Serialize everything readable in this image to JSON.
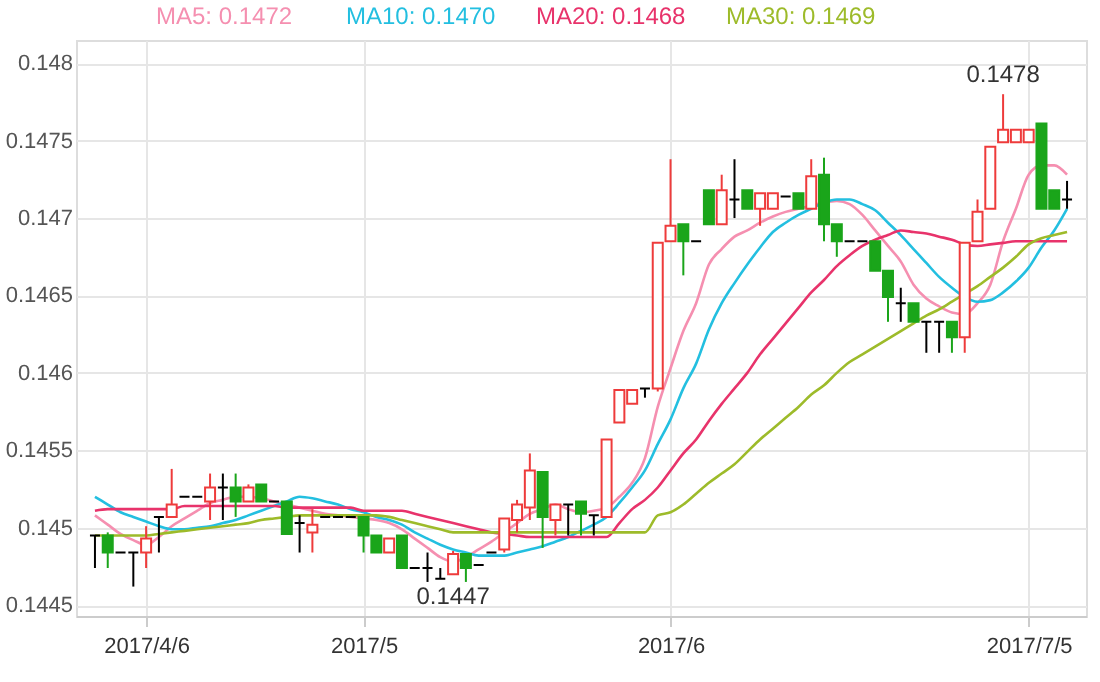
{
  "chart_data": {
    "type": "candlestick",
    "categories": [
      null,
      null,
      null,
      null,
      "2017/4/6",
      null,
      null,
      null,
      null,
      null,
      null,
      null,
      null,
      null,
      null,
      null,
      null,
      null,
      null,
      null,
      null,
      "2017/5",
      null,
      null,
      null,
      null,
      null,
      null,
      null,
      null,
      null,
      null,
      null,
      null,
      null,
      null,
      null,
      null,
      null,
      null,
      null,
      null,
      null,
      null,
      null,
      "2017/6",
      null,
      null,
      null,
      null,
      null,
      null,
      null,
      null,
      null,
      null,
      null,
      null,
      null,
      null,
      null,
      null,
      null,
      null,
      null,
      null,
      null,
      null,
      null,
      null,
      null,
      null,
      null,
      "2017/7/5",
      null,
      null,
      null
    ],
    "ohlc": [
      [
        0.14495,
        0.14495,
        0.14474,
        0.14495
      ],
      [
        0.14495,
        0.14497,
        0.14474,
        0.14484
      ],
      [
        0.14484,
        0.14484,
        0.14484,
        0.14484
      ],
      [
        0.14484,
        0.14484,
        0.14462,
        0.14484
      ],
      [
        0.14484,
        0.14501,
        0.14474,
        0.14493
      ],
      [
        0.14507,
        0.14507,
        0.14484,
        0.14507
      ],
      [
        0.14507,
        0.14538,
        0.14507,
        0.14515
      ],
      [
        0.1452,
        0.1452,
        0.1452,
        0.1452
      ],
      [
        0.1452,
        0.1452,
        0.1452,
        0.1452
      ],
      [
        0.14517,
        0.14535,
        0.14505,
        0.14526
      ],
      [
        0.14526,
        0.14535,
        0.14505,
        0.14526
      ],
      [
        0.14526,
        0.14535,
        0.14507,
        0.14517
      ],
      [
        0.14517,
        0.14528,
        0.14517,
        0.14526
      ],
      [
        0.14528,
        0.14528,
        0.14517,
        0.14517
      ],
      [
        0.14517,
        0.14517,
        0.14517,
        0.14517
      ],
      [
        0.14517,
        0.14517,
        0.14496,
        0.14496
      ],
      [
        0.14503,
        0.14508,
        0.14484,
        0.14503
      ],
      [
        0.14497,
        0.14512,
        0.14484,
        0.14502
      ],
      [
        0.14507,
        0.14507,
        0.14507,
        0.14507
      ],
      [
        0.14507,
        0.14507,
        0.14507,
        0.14507
      ],
      [
        0.14507,
        0.14507,
        0.14507,
        0.14507
      ],
      [
        0.14507,
        0.14507,
        0.14484,
        0.14495
      ],
      [
        0.14495,
        0.14495,
        0.14484,
        0.14484
      ],
      [
        0.14484,
        0.14493,
        0.14484,
        0.14493
      ],
      [
        0.14495,
        0.14495,
        0.14474,
        0.14474
      ],
      [
        0.14474,
        0.14474,
        0.14474,
        0.14474
      ],
      [
        0.14474,
        0.14484,
        0.14465,
        0.14474
      ],
      [
        0.14467,
        0.14474,
        0.14467,
        0.14467
      ],
      [
        0.1447,
        0.14485,
        0.1447,
        0.14483
      ],
      [
        0.14483,
        0.14483,
        0.14465,
        0.14474
      ],
      [
        0.14476,
        0.14476,
        0.14476,
        0.14476
      ],
      [
        0.14484,
        0.14484,
        0.14484,
        0.14484
      ],
      [
        0.14486,
        0.14506,
        0.14484,
        0.14506
      ],
      [
        0.14505,
        0.14518,
        0.14497,
        0.14515
      ],
      [
        0.14513,
        0.14548,
        0.14505,
        0.14537
      ],
      [
        0.14536,
        0.14536,
        0.14487,
        0.14507
      ],
      [
        0.14505,
        0.14515,
        0.14495,
        0.14515
      ],
      [
        0.14515,
        0.14515,
        0.14495,
        0.14515
      ],
      [
        0.14517,
        0.14517,
        0.14495,
        0.14509
      ],
      [
        0.14508,
        0.14508,
        0.14495,
        0.14508
      ],
      [
        0.14507,
        0.14557,
        0.14507,
        0.14557
      ],
      [
        0.14568,
        0.14589,
        0.14568,
        0.14589
      ],
      [
        0.1458,
        0.14589,
        0.1458,
        0.14589
      ],
      [
        0.1459,
        0.1459,
        0.14584,
        0.1459
      ],
      [
        0.1459,
        0.14684,
        0.14588,
        0.14684
      ],
      [
        0.14685,
        0.14738,
        0.14685,
        0.14695
      ],
      [
        0.14696,
        0.14696,
        0.14663,
        0.14685
      ],
      [
        0.14685,
        0.14685,
        0.14685,
        0.14685
      ],
      [
        0.14718,
        0.14718,
        0.14696,
        0.14696
      ],
      [
        0.14696,
        0.14728,
        0.14696,
        0.14718
      ],
      [
        0.14712,
        0.14738,
        0.147,
        0.14712
      ],
      [
        0.14718,
        0.14718,
        0.14706,
        0.14706
      ],
      [
        0.14706,
        0.14716,
        0.14695,
        0.14716
      ],
      [
        0.14706,
        0.14716,
        0.14706,
        0.14716
      ],
      [
        0.14714,
        0.14714,
        0.14714,
        0.14714
      ],
      [
        0.14716,
        0.14716,
        0.14706,
        0.14706
      ],
      [
        0.14706,
        0.14738,
        0.14706,
        0.14727
      ],
      [
        0.14728,
        0.14739,
        0.14685,
        0.14696
      ],
      [
        0.14696,
        0.14696,
        0.14675,
        0.14685
      ],
      [
        0.14685,
        0.14685,
        0.14685,
        0.14685
      ],
      [
        0.14685,
        0.14685,
        0.14685,
        0.14685
      ],
      [
        0.14685,
        0.14685,
        0.14666,
        0.14666
      ],
      [
        0.14666,
        0.14666,
        0.14633,
        0.14649
      ],
      [
        0.14645,
        0.14655,
        0.14633,
        0.14645
      ],
      [
        0.14645,
        0.14645,
        0.14633,
        0.14633
      ],
      [
        0.14633,
        0.14633,
        0.14613,
        0.14633
      ],
      [
        0.14633,
        0.14633,
        0.14613,
        0.14633
      ],
      [
        0.14633,
        0.14633,
        0.14613,
        0.14623
      ],
      [
        0.14623,
        0.14684,
        0.14613,
        0.14684
      ],
      [
        0.14685,
        0.14712,
        0.14685,
        0.14704
      ],
      [
        0.14706,
        0.14746,
        0.14706,
        0.14746
      ],
      [
        0.14749,
        0.1478,
        0.14749,
        0.14757
      ],
      [
        0.14749,
        0.14757,
        0.14749,
        0.14757
      ],
      [
        0.14749,
        0.14757,
        0.14749,
        0.14757
      ],
      [
        0.14761,
        0.14761,
        0.14706,
        0.14706
      ],
      [
        0.14718,
        0.14718,
        0.14706,
        0.14706
      ],
      [
        0.14712,
        0.14724,
        0.14706,
        0.14712
      ]
    ],
    "colors": [
      "#000000",
      "#1aa51a",
      "#000000",
      "#000000",
      "#ee3b3b",
      "#000000",
      "#ee3b3b",
      "#000000",
      "#000000",
      "#ee3b3b",
      "#000000",
      "#1aa51a",
      "#ee3b3b",
      "#1aa51a",
      "#000000",
      "#1aa51a",
      "#000000",
      "#ee3b3b",
      "#000000",
      "#000000",
      "#000000",
      "#1aa51a",
      "#1aa51a",
      "#ee3b3b",
      "#1aa51a",
      "#000000",
      "#000000",
      "#000000",
      "#ee3b3b",
      "#1aa51a",
      "#000000",
      "#000000",
      "#ee3b3b",
      "#ee3b3b",
      "#ee3b3b",
      "#1aa51a",
      "#ee3b3b",
      "#000000",
      "#1aa51a",
      "#000000",
      "#ee3b3b",
      "#ee3b3b",
      "#ee3b3b",
      "#000000",
      "#ee3b3b",
      "#ee3b3b",
      "#1aa51a",
      "#000000",
      "#1aa51a",
      "#ee3b3b",
      "#000000",
      "#1aa51a",
      "#ee3b3b",
      "#ee3b3b",
      "#000000",
      "#1aa51a",
      "#ee3b3b",
      "#1aa51a",
      "#1aa51a",
      "#000000",
      "#000000",
      "#1aa51a",
      "#1aa51a",
      "#000000",
      "#1aa51a",
      "#000000",
      "#000000",
      "#1aa51a",
      "#ee3b3b",
      "#ee3b3b",
      "#ee3b3b",
      "#ee3b3b",
      "#ee3b3b",
      "#ee3b3b",
      "#1aa51a",
      "#1aa51a",
      "#000000"
    ],
    "series": [
      {
        "name": "MA5: 0.1472",
        "type": "line",
        "color": "#f58fb0",
        "values": [
          0.14508,
          0.14502,
          0.14496,
          0.14492,
          0.14489,
          0.14494,
          0.14501,
          0.14506,
          0.14511,
          0.14516,
          0.14518,
          0.1452,
          0.1452,
          0.14519,
          0.14517,
          0.14515,
          0.14513,
          0.14511,
          0.14509,
          0.14508,
          0.14507,
          0.14506,
          0.14505,
          0.14503,
          0.14499,
          0.14493,
          0.14487,
          0.14481,
          0.14478,
          0.14481,
          0.14486,
          0.14491,
          0.14497,
          0.14503,
          0.14509,
          0.14512,
          0.14515,
          0.14512,
          0.1451,
          0.14511,
          0.14513,
          0.1452,
          0.14529,
          0.14545,
          0.14578,
          0.14603,
          0.14627,
          0.14645,
          0.1467,
          0.1468,
          0.14688,
          0.14692,
          0.14697,
          0.14701,
          0.14704,
          0.14706,
          0.14708,
          0.1471,
          0.14711,
          0.14709,
          0.14702,
          0.14692,
          0.14682,
          0.14672,
          0.14657,
          0.14648,
          0.14643,
          0.14639,
          0.14638,
          0.14645,
          0.14657,
          0.14685,
          0.14706,
          0.14728,
          0.14734,
          0.14734,
          0.14728
        ]
      },
      {
        "name": "MA10: 0.1470",
        "type": "line",
        "color": "#23bfe0",
        "values": [
          0.1452,
          0.14515,
          0.1451,
          0.14507,
          0.14504,
          0.14501,
          0.14499,
          0.14499,
          0.145,
          0.14501,
          0.14503,
          0.14505,
          0.14508,
          0.14511,
          0.14514,
          0.14517,
          0.1452,
          0.14519,
          0.14517,
          0.14515,
          0.14512,
          0.1451,
          0.14507,
          0.14505,
          0.14502,
          0.14497,
          0.14493,
          0.14489,
          0.14486,
          0.14484,
          0.14482,
          0.14482,
          0.14482,
          0.14484,
          0.14486,
          0.14488,
          0.14491,
          0.14494,
          0.14498,
          0.14502,
          0.14507,
          0.14516,
          0.14526,
          0.14537,
          0.14554,
          0.1457,
          0.1459,
          0.14606,
          0.14628,
          0.14645,
          0.14658,
          0.1467,
          0.14681,
          0.14691,
          0.14697,
          0.14702,
          0.14706,
          0.1471,
          0.14712,
          0.14712,
          0.14709,
          0.14705,
          0.14697,
          0.14689,
          0.1468,
          0.14671,
          0.14662,
          0.14655,
          0.14649,
          0.14646,
          0.14647,
          0.14652,
          0.14659,
          0.14668,
          0.14681,
          0.14692,
          0.14706
        ]
      },
      {
        "name": "MA20: 0.1468",
        "type": "line",
        "color": "#e8336b",
        "values": [
          0.14511,
          0.14512,
          0.14512,
          0.14512,
          0.14512,
          0.14512,
          0.14512,
          0.14514,
          0.14514,
          0.14514,
          0.14514,
          0.14514,
          0.14514,
          0.14514,
          0.14514,
          0.14513,
          0.14513,
          0.14513,
          0.14513,
          0.14513,
          0.14513,
          0.14511,
          0.14511,
          0.14511,
          0.14511,
          0.14509,
          0.14507,
          0.14505,
          0.14503,
          0.14501,
          0.14499,
          0.14497,
          0.14496,
          0.14495,
          0.14494,
          0.14494,
          0.14494,
          0.14494,
          0.14494,
          0.14494,
          0.14494,
          0.14503,
          0.14512,
          0.14518,
          0.14526,
          0.14537,
          0.14548,
          0.14557,
          0.14569,
          0.1458,
          0.1459,
          0.146,
          0.14612,
          0.14622,
          0.14632,
          0.14642,
          0.14652,
          0.1466,
          0.14669,
          0.14676,
          0.14682,
          0.14686,
          0.14689,
          0.14692,
          0.14691,
          0.1469,
          0.14688,
          0.14686,
          0.14683,
          0.14682,
          0.14683,
          0.14684,
          0.14685,
          0.14685,
          0.14685,
          0.14685,
          0.14685
        ]
      },
      {
        "name": "MA30: 0.1469",
        "type": "line",
        "color": "#9dbb2a",
        "values": [
          0.14495,
          0.14495,
          0.14495,
          0.14495,
          0.14495,
          0.14496,
          0.14497,
          0.14498,
          0.14499,
          0.145,
          0.14501,
          0.14502,
          0.14503,
          0.14505,
          0.14506,
          0.14507,
          0.14508,
          0.14508,
          0.14508,
          0.14508,
          0.14508,
          0.14508,
          0.14508,
          0.14507,
          0.14505,
          0.14503,
          0.14501,
          0.14499,
          0.14497,
          0.14497,
          0.14497,
          0.14497,
          0.14497,
          0.14497,
          0.14497,
          0.14497,
          0.14497,
          0.14497,
          0.14497,
          0.14497,
          0.14497,
          0.14497,
          0.14497,
          0.14497,
          0.14508,
          0.1451,
          0.14515,
          0.14522,
          0.14529,
          0.14535,
          0.14541,
          0.14549,
          0.14557,
          0.14564,
          0.14571,
          0.14578,
          0.14586,
          0.14592,
          0.146,
          0.14607,
          0.14612,
          0.14617,
          0.14622,
          0.14627,
          0.14632,
          0.14637,
          0.14641,
          0.14646,
          0.14651,
          0.14656,
          0.14662,
          0.14668,
          0.14675,
          0.14683,
          0.14687,
          0.14689,
          0.14691
        ]
      }
    ],
    "ylim": [
      0.14443,
      0.14815
    ],
    "yticks": [
      0.1445,
      0.145,
      0.1455,
      0.146,
      0.1465,
      0.147,
      0.1475,
      0.148
    ],
    "grid": true,
    "legend": "top left",
    "annotations": [
      {
        "text": "0.1478",
        "y": 0.1478
      },
      {
        "text": "0.1447",
        "y": 0.1447
      }
    ]
  }
}
